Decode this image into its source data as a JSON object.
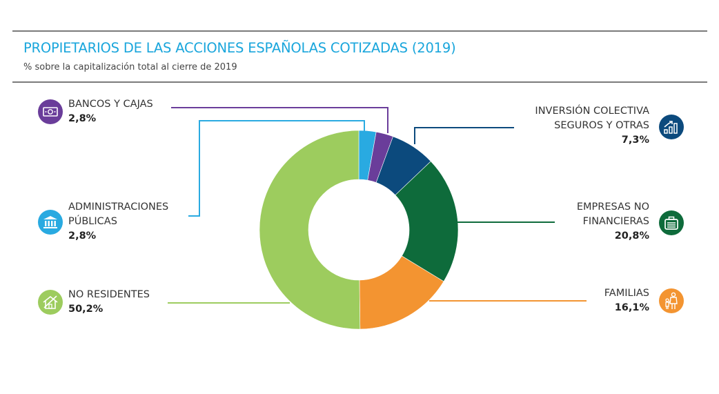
{
  "header": {
    "title": "PROPIETARIOS DE LAS ACCIONES ESPAÑOLAS COTIZADAS (2019)",
    "subtitle": "% sobre la capitalización total al cierre de 2019"
  },
  "chart_data": {
    "type": "pie",
    "variant": "donut",
    "title": "PROPIETARIOS DE LAS ACCIONES ESPAÑOLAS COTIZADAS (2019)",
    "subtitle": "% sobre la capitalización total al cierre de 2019",
    "unit": "%",
    "slices": [
      {
        "name": "Administraciones Públicas",
        "label_lines": [
          "ADMINISTRACIONES",
          "PÚBLICAS"
        ],
        "value": 2.8,
        "value_label": "2,8%",
        "color": "#29aae1",
        "icon": "bank-building-icon"
      },
      {
        "name": "Bancos y Cajas",
        "label_lines": [
          "BANCOS Y CAJAS"
        ],
        "value": 2.8,
        "value_label": "2,8%",
        "color": "#6a3d9a",
        "icon": "banknote-icon"
      },
      {
        "name": "Inversión colectiva seguros y otras",
        "label_lines": [
          "INVERSIÓN COLECTIVA",
          "SEGUROS Y OTRAS"
        ],
        "value": 7.3,
        "value_label": "7,3%",
        "color": "#0c4a7d",
        "icon": "growth-chart-icon"
      },
      {
        "name": "Empresas no financieras",
        "label_lines": [
          "EMPRESAS NO",
          "FINANCIERAS"
        ],
        "value": 20.8,
        "value_label": "20,8%",
        "color": "#0e6b3b",
        "icon": "briefcase-icon"
      },
      {
        "name": "Familias",
        "label_lines": [
          "FAMILIAS"
        ],
        "value": 16.1,
        "value_label": "16,1%",
        "color": "#f39431",
        "icon": "family-icon"
      },
      {
        "name": "No residentes",
        "label_lines": [
          "NO RESIDENTES"
        ],
        "value": 50.2,
        "value_label": "50,2%",
        "color": "#9dcc5e",
        "icon": "house-crossed-icon"
      }
    ],
    "start_angle_deg": 0,
    "direction": "clockwise",
    "legend": "none (leader-line callouts)"
  }
}
